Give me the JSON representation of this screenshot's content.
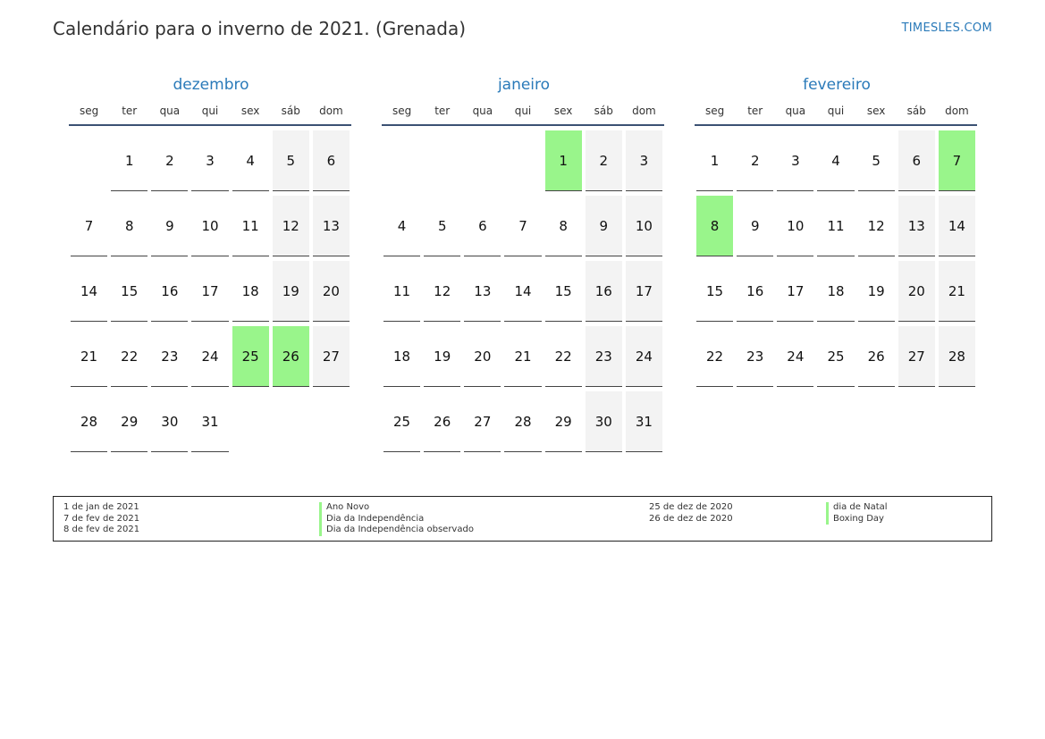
{
  "title": "Calendário para o inverno de 2021. (Grenada)",
  "site": "TIMESLES.COM",
  "colors": {
    "accent": "#2a7ab9",
    "holiday": "#99f58b",
    "weekend": "#f3f3f3"
  },
  "weekdays": [
    "seg",
    "ter",
    "qua",
    "qui",
    "sex",
    "sáb",
    "dom"
  ],
  "months": [
    {
      "name": "dezembro",
      "start_offset": 1,
      "days": 31,
      "holidays": [
        25,
        26
      ]
    },
    {
      "name": "janeiro",
      "start_offset": 4,
      "days": 31,
      "holidays": [
        1
      ]
    },
    {
      "name": "fevereiro",
      "start_offset": 0,
      "days": 28,
      "holidays": [
        7,
        8
      ]
    }
  ],
  "legend": {
    "left": [
      {
        "date": "1 de jan de 2021",
        "name": "Ano Novo"
      },
      {
        "date": "7 de fev de 2021",
        "name": "Dia da Independência"
      },
      {
        "date": "8 de fev de 2021",
        "name": "Dia da Independência observado"
      }
    ],
    "right": [
      {
        "date": "25 de dez de 2020",
        "name": "dia de Natal"
      },
      {
        "date": "26 de dez de 2020",
        "name": "Boxing Day"
      }
    ]
  }
}
